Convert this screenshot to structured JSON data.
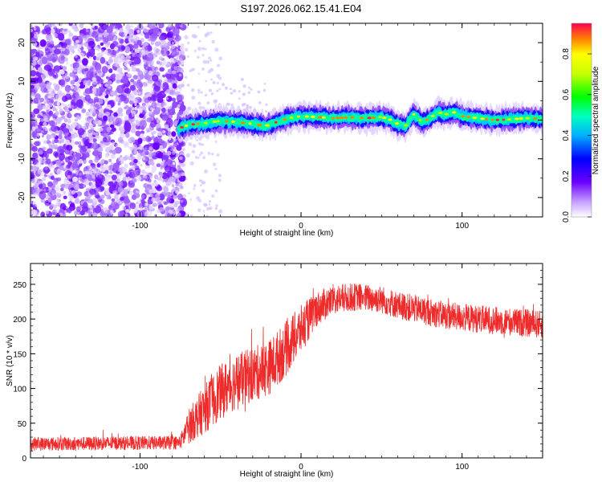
{
  "title": "S197.2026.062.15.41.E04",
  "chart_data": [
    {
      "type": "heatmap",
      "name": "spectrogram",
      "xlabel": "Height of straight line (km)",
      "ylabel": "Frequency (Hz)",
      "xlim": [
        -168,
        150
      ],
      "ylim": [
        -25,
        25
      ],
      "xticks": [
        -100,
        0,
        100
      ],
      "yticks": [
        -20,
        -10,
        0,
        10,
        20
      ],
      "noise_region_x": [
        -168,
        -75
      ],
      "signal_start_x": -76,
      "ridge": [
        {
          "x": -76,
          "y": -2.2
        },
        {
          "x": -70,
          "y": -1.2
        },
        {
          "x": -60,
          "y": -0.8
        },
        {
          "x": -50,
          "y": -0.2
        },
        {
          "x": -40,
          "y": -0.5
        },
        {
          "x": -30,
          "y": -1.0
        },
        {
          "x": -22,
          "y": -1.5
        },
        {
          "x": -15,
          "y": -0.5
        },
        {
          "x": -8,
          "y": 0.5
        },
        {
          "x": 0,
          "y": 1.0
        },
        {
          "x": 10,
          "y": 0.8
        },
        {
          "x": 20,
          "y": 0.5
        },
        {
          "x": 30,
          "y": 0.7
        },
        {
          "x": 40,
          "y": 0.5
        },
        {
          "x": 50,
          "y": 0.8
        },
        {
          "x": 55,
          "y": 0.2
        },
        {
          "x": 60,
          "y": -1.0
        },
        {
          "x": 65,
          "y": -1.5
        },
        {
          "x": 70,
          "y": 1.5
        },
        {
          "x": 75,
          "y": -0.5
        },
        {
          "x": 80,
          "y": 0.5
        },
        {
          "x": 85,
          "y": 2.0
        },
        {
          "x": 90,
          "y": 1.5
        },
        {
          "x": 95,
          "y": 2.0
        },
        {
          "x": 100,
          "y": 1.0
        },
        {
          "x": 110,
          "y": 0.5
        },
        {
          "x": 120,
          "y": 0.0
        },
        {
          "x": 130,
          "y": 0.2
        },
        {
          "x": 140,
          "y": 0.5
        },
        {
          "x": 150,
          "y": 0.3
        }
      ],
      "colorbar": {
        "label": "Normalized spectral amplitude",
        "range": [
          0,
          0.95
        ],
        "ticks": [
          0.0,
          0.2,
          0.4,
          0.6,
          0.8
        ],
        "tick_labels": [
          "0.0",
          "0.2",
          "0.4",
          "0.6",
          "0.8"
        ]
      }
    },
    {
      "type": "line",
      "name": "snr",
      "xlabel": "Height of straight line (km)",
      "ylabel": "SNR (10 * v/v)",
      "xlim": [
        -168,
        150
      ],
      "ylim": [
        0,
        280
      ],
      "xticks": [
        -100,
        0,
        100
      ],
      "yticks": [
        0,
        50,
        100,
        150,
        200,
        250
      ],
      "series": [
        {
          "name": "SNR",
          "color": "#ee2b2b",
          "envelope": [
            {
              "x": -168,
              "mean": 20,
              "spread": 10
            },
            {
              "x": -75,
              "mean": 22,
              "spread": 10
            },
            {
              "x": -70,
              "mean": 45,
              "spread": 25
            },
            {
              "x": -60,
              "mean": 70,
              "spread": 35
            },
            {
              "x": -50,
              "mean": 95,
              "spread": 40
            },
            {
              "x": -40,
              "mean": 110,
              "spread": 40
            },
            {
              "x": -30,
              "mean": 120,
              "spread": 40
            },
            {
              "x": -20,
              "mean": 130,
              "spread": 40
            },
            {
              "x": -10,
              "mean": 155,
              "spread": 40
            },
            {
              "x": 0,
              "mean": 185,
              "spread": 35
            },
            {
              "x": 10,
              "mean": 215,
              "spread": 25
            },
            {
              "x": 20,
              "mean": 228,
              "spread": 22
            },
            {
              "x": 35,
              "mean": 232,
              "spread": 20
            },
            {
              "x": 50,
              "mean": 228,
              "spread": 20
            },
            {
              "x": 60,
              "mean": 220,
              "spread": 20
            },
            {
              "x": 70,
              "mean": 215,
              "spread": 20
            },
            {
              "x": 90,
              "mean": 205,
              "spread": 20
            },
            {
              "x": 110,
              "mean": 200,
              "spread": 20
            },
            {
              "x": 130,
              "mean": 196,
              "spread": 20
            },
            {
              "x": 150,
              "mean": 192,
              "spread": 20
            }
          ]
        }
      ]
    }
  ]
}
